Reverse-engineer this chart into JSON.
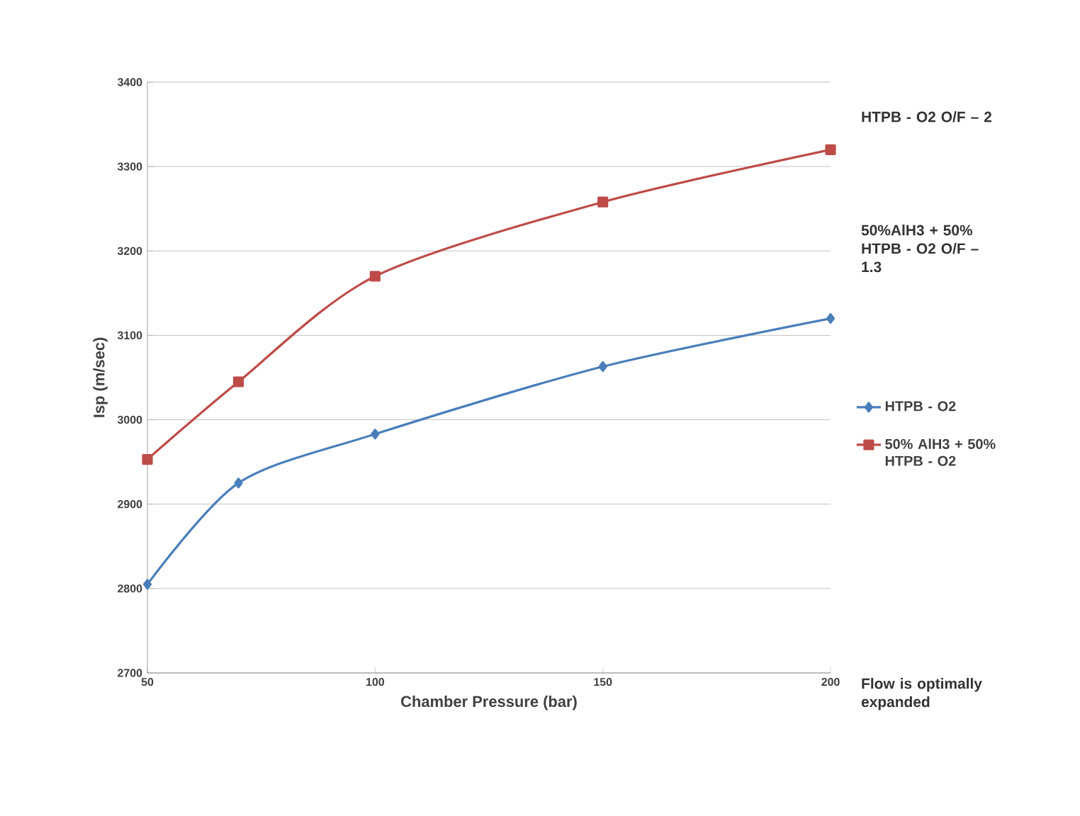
{
  "chart_data": {
    "type": "line",
    "xlabel": "Chamber Pressure (bar)",
    "ylabel": "Isp (m/sec)",
    "x": [
      50,
      70,
      100,
      150,
      200
    ],
    "series": [
      {
        "name": "HTPB - O2",
        "color": "#4a7ebb",
        "marker": "diamond",
        "values": [
          2805,
          2925,
          2983,
          3063,
          3120
        ]
      },
      {
        "name": "50% AlH3 + 50% HTPB - O2",
        "color": "#be4b48",
        "marker": "square",
        "values": [
          2953,
          3045,
          3170,
          3258,
          3320
        ]
      }
    ],
    "xlim": [
      50,
      200
    ],
    "xticks": [
      50,
      100,
      150,
      200
    ],
    "ylim": [
      2700,
      3400
    ],
    "yticks": [
      2700,
      2800,
      2900,
      3000,
      3100,
      3200,
      3300,
      3400
    ],
    "grid": "y",
    "legend": "right",
    "line_style": "solid",
    "annotations": [
      "HTPB - O2 O/F – 2",
      "50%AlH3 + 50% HTPB - O2 O/F – 1.3",
      "Flow is optimally expanded"
    ]
  }
}
